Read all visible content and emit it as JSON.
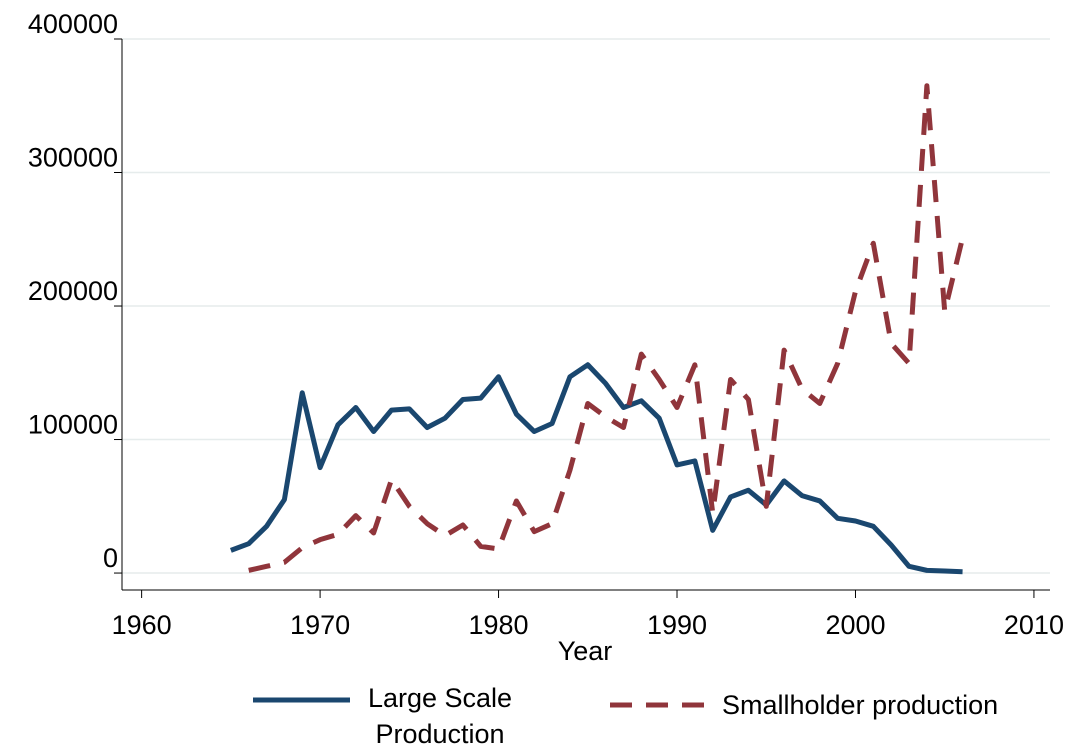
{
  "chart_data": {
    "type": "line",
    "x_label": "Year",
    "x": [
      1965,
      1966,
      1967,
      1968,
      1969,
      1970,
      1971,
      1972,
      1973,
      1974,
      1975,
      1976,
      1977,
      1978,
      1979,
      1980,
      1981,
      1982,
      1983,
      1984,
      1985,
      1986,
      1987,
      1988,
      1989,
      1990,
      1991,
      1992,
      1993,
      1994,
      1995,
      1996,
      1997,
      1998,
      1999,
      2000,
      2001,
      2002,
      2003,
      2004,
      2005,
      2006
    ],
    "series": [
      {
        "name": "Large Scale Production",
        "color": "#1a476f",
        "dash": false,
        "values": [
          17000,
          22000,
          35000,
          55000,
          135000,
          79000,
          111000,
          124000,
          106000,
          122000,
          123000,
          109000,
          116000,
          130000,
          131000,
          147000,
          119000,
          106000,
          112000,
          147000,
          156000,
          142000,
          124000,
          129000,
          116000,
          81000,
          84000,
          32000,
          57000,
          62000,
          51000,
          69000,
          58000,
          54000,
          41000,
          39000,
          35000,
          21000,
          5000,
          2000,
          1500,
          1000
        ]
      },
      {
        "name": "Smallholder production",
        "color": "#90353b",
        "dash": true,
        "values": [
          null,
          2000,
          5000,
          8000,
          19000,
          25000,
          29000,
          43000,
          30000,
          70000,
          50000,
          37000,
          28000,
          36000,
          20000,
          18000,
          54000,
          31000,
          37000,
          77000,
          127000,
          117000,
          109000,
          164000,
          145000,
          124000,
          156000,
          45000,
          145000,
          130000,
          50000,
          167000,
          138000,
          127000,
          157000,
          211000,
          247000,
          172000,
          157000,
          365000,
          196000,
          251000
        ]
      }
    ],
    "xlim": [
      1958.9,
      2010.9
    ],
    "xticks": [
      1960,
      1970,
      1980,
      1990,
      2000,
      2010
    ],
    "ylim": [
      -12700,
      400000
    ],
    "yticks": [
      0,
      100000,
      200000,
      300000,
      400000
    ],
    "grid": true
  }
}
